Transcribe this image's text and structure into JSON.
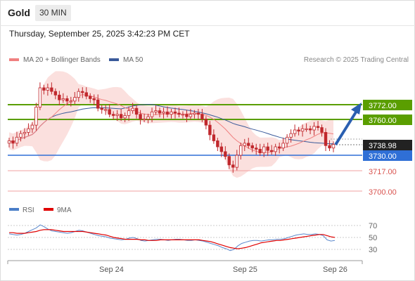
{
  "header": {
    "instrument": "Gold",
    "timeframe": "30 MIN"
  },
  "timestamp": "Thursday, September 25, 2025 3:42:23 PM CET",
  "legend": {
    "items": [
      {
        "label": "MA 20 + Bollinger Bands",
        "color": "#f08080"
      },
      {
        "label": "MA 50",
        "color": "#3a5a9a"
      }
    ],
    "research": "Research © 2025 Trading Central"
  },
  "levels": {
    "resistance2": "3772.00",
    "resistance1": "3760.00",
    "last": "3738.98",
    "pivot": "3730.00",
    "support1": "3717.00",
    "support2": "3700.00"
  },
  "rsi_legend": {
    "rsi": "RSI",
    "ma": "9MA"
  },
  "rsi_ticks": [
    "70",
    "50",
    "30"
  ],
  "x_labels": [
    "Sep 24",
    "Sep 25",
    "Sep 26"
  ],
  "colors": {
    "green": "#5a9e00",
    "blue": "#2f6fd6",
    "red": "#d9534f",
    "candle": "#c0282d"
  },
  "chart_data": {
    "type": "candlestick",
    "y_axis_levels": [
      3772,
      3760,
      3738.98,
      3730,
      3717,
      3700
    ],
    "closes": [
      3742,
      3740,
      3745,
      3748,
      3749,
      3752,
      3755,
      3770,
      3786,
      3784,
      3786,
      3783,
      3780,
      3776,
      3777,
      3775,
      3775,
      3778,
      3783,
      3782,
      3779,
      3777,
      3776,
      3769,
      3768,
      3768,
      3764,
      3763,
      3764,
      3761,
      3763,
      3767,
      3769,
      3764,
      3760,
      3760,
      3762,
      3766,
      3767,
      3765,
      3766,
      3764,
      3766,
      3765,
      3764,
      3764,
      3762,
      3764,
      3765,
      3764,
      3760,
      3755,
      3747,
      3742,
      3737,
      3733,
      3729,
      3722,
      3720,
      3730,
      3738,
      3740,
      3738,
      3736,
      3735,
      3732,
      3737,
      3734,
      3733,
      3737,
      3736,
      3740,
      3745,
      3748,
      3751,
      3750,
      3752,
      3752,
      3751,
      3754,
      3753,
      3749,
      3738,
      3736,
      3739
    ],
    "rsi": [
      56,
      55,
      54,
      55,
      57,
      60,
      63,
      66,
      71,
      68,
      64,
      61,
      60,
      59,
      58,
      57,
      58,
      60,
      62,
      61,
      59,
      57,
      55,
      53,
      52,
      51,
      49,
      48,
      47,
      46,
      47,
      49,
      50,
      48,
      45,
      44,
      45,
      46,
      47,
      47,
      46,
      45,
      46,
      47,
      47,
      46,
      45,
      45,
      46,
      45,
      44,
      42,
      40,
      38,
      36,
      33,
      31,
      28,
      30,
      36,
      40,
      42,
      44,
      45,
      45,
      44,
      45,
      46,
      46,
      47,
      47,
      48,
      50,
      52,
      54,
      55,
      56,
      55,
      55,
      56,
      55,
      53,
      46,
      44,
      45
    ],
    "rsi_ma": [
      58,
      58,
      57,
      57,
      57,
      58,
      59,
      60,
      62,
      63,
      63,
      63,
      62,
      61,
      60,
      60,
      60,
      60,
      60,
      60,
      59,
      58,
      57,
      56,
      55,
      54,
      52,
      50,
      49,
      48,
      47,
      47,
      47,
      47,
      46,
      46,
      45,
      45,
      45,
      46,
      46,
      46,
      46,
      46,
      46,
      46,
      46,
      46,
      46,
      46,
      45,
      44,
      43,
      41,
      39,
      37,
      35,
      33,
      32,
      31,
      32,
      33,
      35,
      37,
      39,
      41,
      42,
      43,
      44,
      45,
      45,
      46,
      47,
      48,
      49,
      50,
      51,
      52,
      53,
      54,
      55,
      55,
      53,
      51,
      50
    ]
  }
}
